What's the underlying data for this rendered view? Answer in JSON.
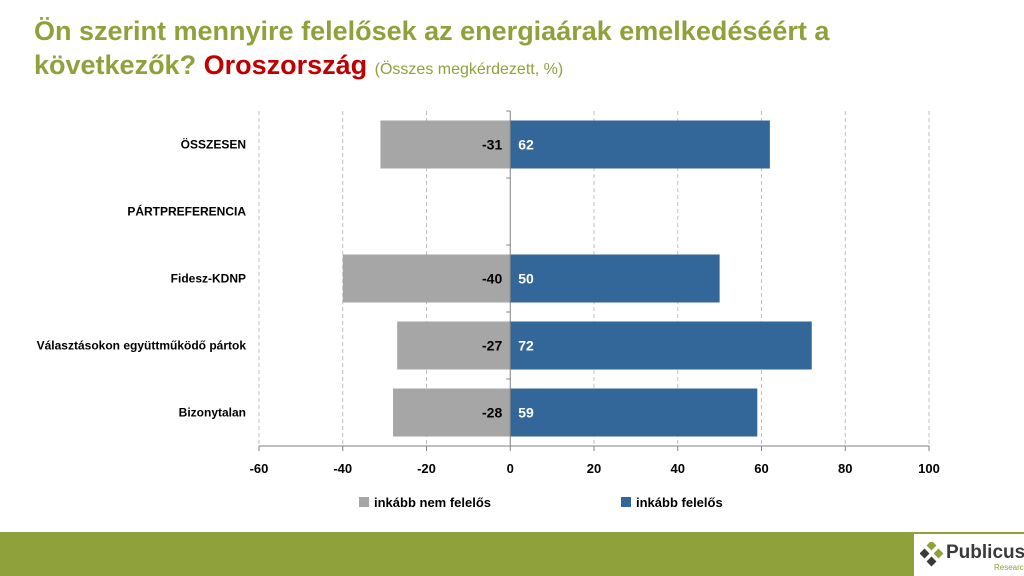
{
  "header": {
    "title_main": "Ön szerint mennyire felelősek az energiaárak emelkedéséért a következők?",
    "title_highlight": "Oroszország",
    "title_sub": "(Összes megkérdezett, %)"
  },
  "colors": {
    "title": "#8fa13a",
    "highlight": "#c00000",
    "neg_bar": "#a6a6a6",
    "pos_bar": "#336699",
    "footer": "#8fa13a"
  },
  "chart_data": {
    "type": "bar",
    "orientation": "horizontal-diverging",
    "categories": [
      "ÖSSZESEN",
      "PÁRTPREFERENCIA",
      "Fidesz-KDNP",
      "Választásokon együttműködő pártok",
      "Bizonytalan"
    ],
    "series": [
      {
        "name": "inkább nem felelős",
        "values": [
          -31,
          null,
          -40,
          -27,
          -28
        ],
        "color": "#a6a6a6",
        "label_color": "#000000"
      },
      {
        "name": "inkább felelős",
        "values": [
          62,
          null,
          50,
          72,
          59
        ],
        "color": "#336699",
        "label_color": "#ffffff"
      }
    ],
    "xlim": [
      -60,
      100
    ],
    "xticks": [
      -60,
      -40,
      -20,
      0,
      20,
      40,
      60,
      80,
      100
    ],
    "grid": "vertical-dashed",
    "legend": "bottom"
  },
  "logo": {
    "name": "Publicus",
    "sub": "Research"
  }
}
